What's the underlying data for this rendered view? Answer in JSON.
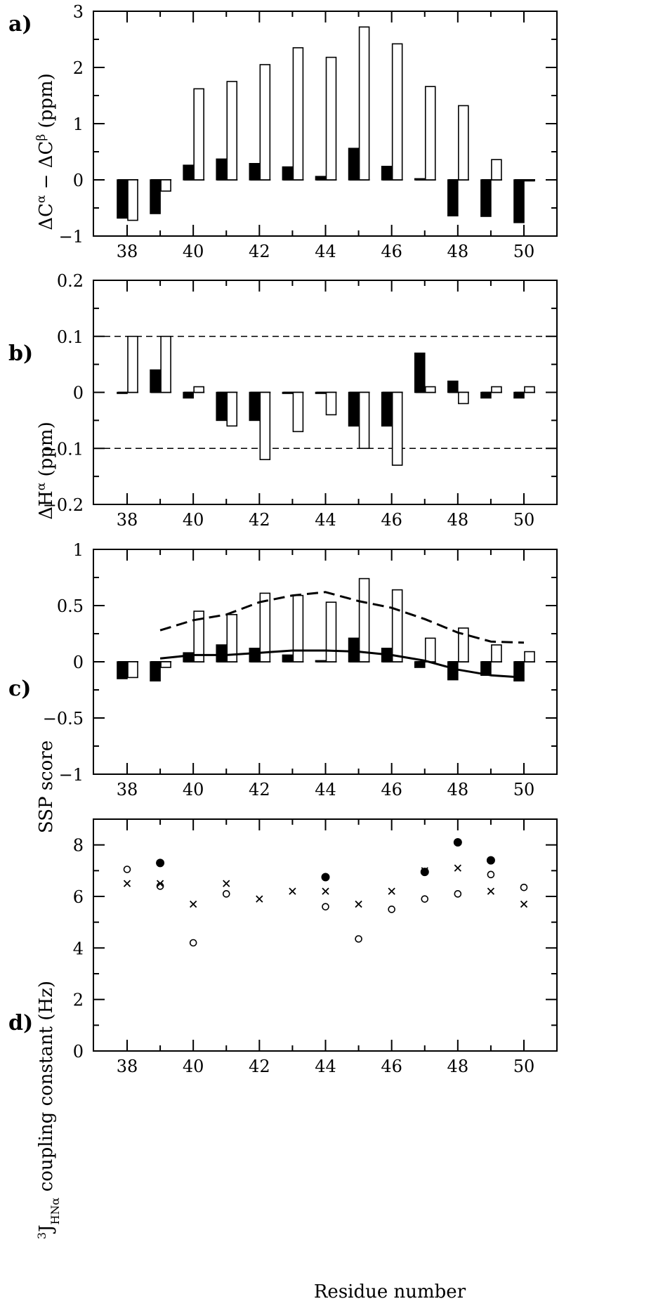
{
  "xlabel": "Residue number",
  "residues": [
    38,
    39,
    40,
    41,
    42,
    43,
    44,
    45,
    46,
    47,
    48,
    49,
    50
  ],
  "xticks": [
    38,
    40,
    42,
    44,
    46,
    48,
    50
  ],
  "chart_data": [
    {
      "type": "bar",
      "panel": "a)",
      "ylabel": "ΔCα − ΔCβ (ppm)",
      "ylim": [
        -1,
        3
      ],
      "yticks": [
        -1,
        0,
        1,
        2,
        3
      ],
      "categories": [
        38,
        39,
        40,
        41,
        42,
        43,
        44,
        45,
        46,
        47,
        48,
        49,
        50
      ],
      "series": [
        {
          "name": "filled",
          "values": [
            -0.68,
            -0.6,
            0.26,
            0.37,
            0.29,
            0.23,
            0.06,
            0.56,
            0.24,
            0.02,
            -0.64,
            -0.65,
            -0.76
          ]
        },
        {
          "name": "open",
          "values": [
            -0.72,
            -0.2,
            1.62,
            1.75,
            2.05,
            2.35,
            2.18,
            2.72,
            2.42,
            1.66,
            1.32,
            0.36,
            0.0
          ]
        }
      ]
    },
    {
      "type": "bar",
      "panel": "b)",
      "ylabel": "ΔHα (ppm)",
      "ylim": [
        -0.2,
        0.2
      ],
      "yticks": [
        -0.2,
        -0.1,
        0,
        0.1,
        0.2
      ],
      "ytick_labels": [
        "−0.2",
        "−0.1",
        "0",
        "0.1",
        "0.2"
      ],
      "reference_lines": [
        0.1,
        -0.1
      ],
      "categories": [
        38,
        39,
        40,
        41,
        42,
        43,
        44,
        45,
        46,
        47,
        48,
        49,
        50
      ],
      "series": [
        {
          "name": "filled",
          "values": [
            0.0,
            0.04,
            -0.01,
            -0.05,
            -0.05,
            0.0,
            0.0,
            -0.06,
            -0.06,
            0.07,
            0.02,
            -0.01,
            -0.01
          ]
        },
        {
          "name": "open",
          "values": [
            0.1,
            0.1,
            0.01,
            -0.06,
            -0.12,
            -0.07,
            -0.04,
            -0.1,
            -0.13,
            0.01,
            -0.02,
            0.01,
            0.01
          ]
        }
      ]
    },
    {
      "type": "bar",
      "panel": "c)",
      "ylabel": "SSP score",
      "ylim": [
        -1,
        1
      ],
      "yticks": [
        -1,
        -0.5,
        0,
        0.5,
        1
      ],
      "ytick_labels": [
        "−1",
        "−0.5",
        "0",
        "0.5",
        "1"
      ],
      "categories": [
        38,
        39,
        40,
        41,
        42,
        43,
        44,
        45,
        46,
        47,
        48,
        49,
        50
      ],
      "series": [
        {
          "name": "filled",
          "values": [
            -0.15,
            -0.17,
            0.08,
            0.15,
            0.12,
            0.06,
            0.01,
            0.21,
            0.12,
            -0.05,
            -0.16,
            -0.12,
            -0.17
          ]
        },
        {
          "name": "open",
          "values": [
            -0.14,
            -0.05,
            0.45,
            0.42,
            0.61,
            0.59,
            0.53,
            0.74,
            0.64,
            0.21,
            0.3,
            0.15,
            0.09
          ]
        }
      ],
      "lines": [
        {
          "name": "dashed",
          "x": [
            39,
            40,
            41,
            42,
            43,
            44,
            45,
            46,
            47,
            48,
            49,
            50
          ],
          "values": [
            0.28,
            0.37,
            0.42,
            0.53,
            0.59,
            0.62,
            0.54,
            0.48,
            0.38,
            0.26,
            0.18,
            0.17
          ]
        },
        {
          "name": "solid",
          "x": [
            39,
            40,
            41,
            42,
            43,
            44,
            45,
            46,
            47,
            48,
            49,
            50
          ],
          "values": [
            0.03,
            0.06,
            0.06,
            0.08,
            0.1,
            0.1,
            0.09,
            0.06,
            0.01,
            -0.07,
            -0.12,
            -0.14
          ]
        }
      ]
    },
    {
      "type": "scatter",
      "panel": "d)",
      "ylabel": "³J HNα coupling constant (Hz)",
      "ylim": [
        0,
        9
      ],
      "yticks": [
        0,
        2,
        4,
        6,
        8
      ],
      "series": [
        {
          "name": "open-circle",
          "x": [
            38,
            39,
            40,
            41,
            44,
            45,
            46,
            47,
            48,
            49,
            50
          ],
          "values": [
            7.05,
            6.4,
            4.2,
            6.1,
            5.6,
            4.35,
            5.5,
            5.9,
            6.1,
            6.85,
            6.35
          ]
        },
        {
          "name": "filled-circle",
          "x": [
            39,
            44,
            47,
            48,
            49
          ],
          "values": [
            7.3,
            6.75,
            6.95,
            8.1,
            7.4
          ]
        },
        {
          "name": "cross",
          "x": [
            38,
            39,
            40,
            41,
            42,
            43,
            44,
            45,
            46,
            47,
            48,
            49,
            50
          ],
          "values": [
            6.5,
            6.5,
            5.7,
            6.5,
            5.9,
            6.2,
            6.2,
            5.7,
            6.2,
            7.0,
            7.1,
            6.2,
            5.7
          ]
        }
      ]
    }
  ]
}
